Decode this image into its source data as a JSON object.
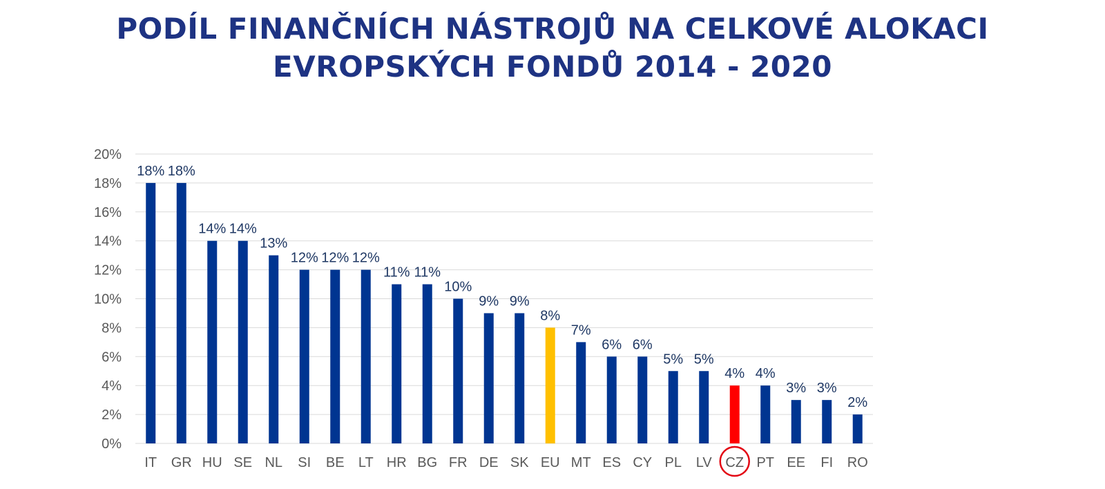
{
  "title": {
    "line1": "PODÍL FINANČNÍCH NÁSTROJŮ NA CELKOVÉ ALOKACI",
    "line2": "EVROPSKÝCH FONDŮ 2014 - 2020"
  },
  "chart_data": {
    "type": "bar",
    "title": "PODÍL FINANČNÍCH NÁSTROJŮ NA CELKOVÉ ALOKACI EVROPSKÝCH FONDŮ 2014 - 2020",
    "xlabel": "",
    "ylabel": "",
    "categories": [
      "IT",
      "GR",
      "HU",
      "SE",
      "NL",
      "SI",
      "BE",
      "LT",
      "HR",
      "BG",
      "FR",
      "DE",
      "SK",
      "EU",
      "MT",
      "ES",
      "CY",
      "PL",
      "LV",
      "CZ",
      "PT",
      "EE",
      "FI",
      "RO"
    ],
    "values": [
      18,
      18,
      14,
      14,
      13,
      12,
      12,
      12,
      11,
      11,
      10,
      9,
      9,
      8,
      7,
      6,
      6,
      5,
      5,
      4,
      4,
      3,
      3,
      2
    ],
    "data_labels": [
      "18%",
      "18%",
      "14%",
      "14%",
      "13%",
      "12%",
      "12%",
      "12%",
      "11%",
      "11%",
      "10%",
      "9%",
      "9%",
      "8%",
      "7%",
      "6%",
      "6%",
      "5%",
      "5%",
      "4%",
      "4%",
      "3%",
      "3%",
      "2%"
    ],
    "ylim": [
      0,
      20
    ],
    "yticks": [
      0,
      2,
      4,
      6,
      8,
      10,
      12,
      14,
      16,
      18,
      20
    ],
    "ytick_labels": [
      "0%",
      "2%",
      "4%",
      "6%",
      "8%",
      "10%",
      "12%",
      "14%",
      "16%",
      "18%",
      "20%"
    ],
    "grid": true,
    "legend": "none",
    "colors": {
      "default": "#003591",
      "highlight": {
        "EU": "#ffc000",
        "CZ": "#ff0000"
      },
      "circle_marker": "#e30613",
      "gridline": "#d9d9d9",
      "axis_text": "#595959",
      "label_text": "#1f3864",
      "title": "#1e3383"
    },
    "circled_category": "CZ"
  }
}
